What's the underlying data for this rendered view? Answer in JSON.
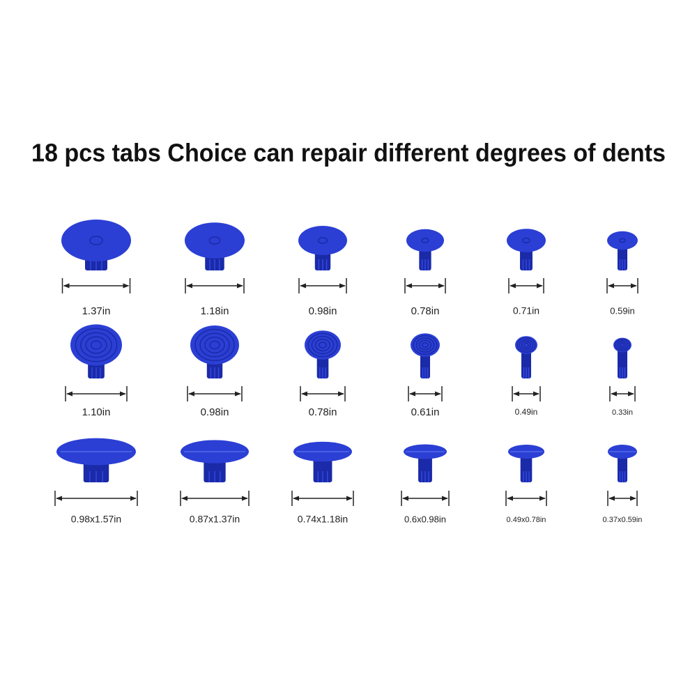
{
  "title": "18 pcs tabs Choice can repair different degrees of dents",
  "rows": [
    [
      "1.37in",
      "1.18in",
      "0.98in",
      "0.78in",
      "0.71in",
      "0.59in"
    ],
    [
      "1.10in",
      "0.98in",
      "0.78in",
      "0.61in",
      "0.49in",
      "0.33in"
    ],
    [
      "0.98x1.57in",
      "0.87x1.37in",
      "0.74x1.18in",
      "0.6x0.98in",
      "0.49x0.78in",
      "0.37x0.59in"
    ]
  ]
}
